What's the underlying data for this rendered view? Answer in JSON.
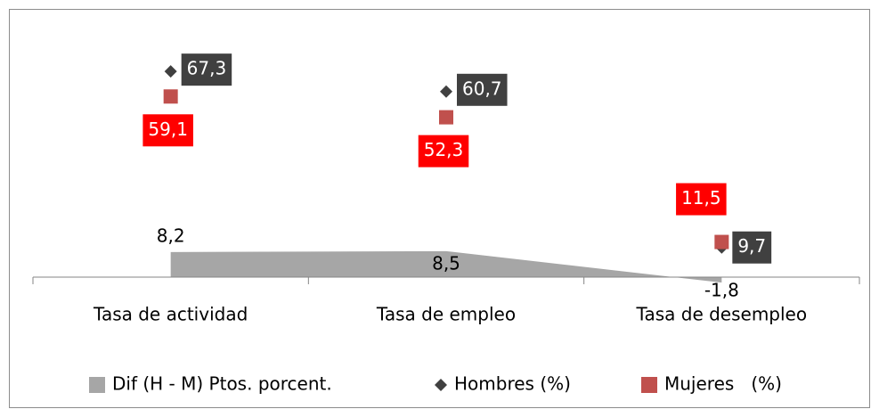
{
  "chart_data": {
    "type": "area-scatter",
    "categories": [
      "Tasa de actividad",
      "Tasa de empleo",
      "Tasa de desempleo"
    ],
    "series": [
      {
        "name": "Dif (H - M) Ptos. porcent.",
        "type": "area",
        "color": "#a6a6a6",
        "values": [
          8.2,
          8.5,
          -1.8
        ],
        "value_labels": [
          "8,2",
          "8,5",
          "-1,8"
        ]
      },
      {
        "name": "Hombres (%)",
        "type": "diamond",
        "color": "#404040",
        "values": [
          67.3,
          60.7,
          9.7
        ],
        "value_labels": [
          "67,3",
          "60,7",
          "9,7"
        ]
      },
      {
        "name": "Mujeres   (%)",
        "type": "square",
        "color": "#c0504d",
        "label_color": "#ff0000",
        "values": [
          59.1,
          52.3,
          11.5
        ],
        "value_labels": [
          "59,1",
          "52,3",
          "11,5"
        ]
      }
    ],
    "ylim": [
      -10,
      80
    ],
    "legend": "bottom"
  }
}
